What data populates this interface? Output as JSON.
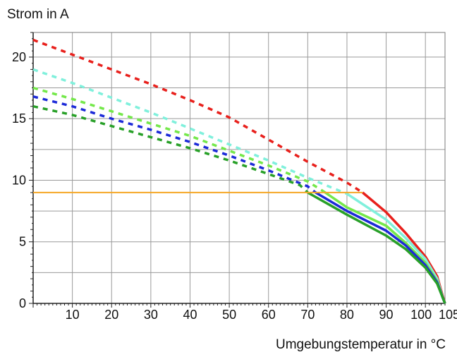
{
  "chart_data": {
    "type": "line",
    "title": "",
    "ylabel": "Strom in A",
    "xlabel": "Umgebungstemperatur in °C",
    "xlim": [
      0,
      105
    ],
    "ylim": [
      0,
      22
    ],
    "x_ticks": [
      10,
      20,
      30,
      40,
      50,
      60,
      70,
      80,
      90,
      100,
      105
    ],
    "y_ticks": [
      0,
      5,
      10,
      15,
      20
    ],
    "grid": true,
    "colors": {
      "red": "#e8201c",
      "cyan": "#80f0dc",
      "lightgreen": "#74e84a",
      "blue": "#1c2ad8",
      "green": "#28a028",
      "orange": "#f5a623"
    },
    "series": [
      {
        "color_key": "red",
        "dashed": [
          [
            0,
            21.4
          ],
          [
            10,
            20.2
          ],
          [
            20,
            19.0
          ],
          [
            30,
            17.8
          ],
          [
            40,
            16.5
          ],
          [
            50,
            15.1
          ],
          [
            60,
            13.3
          ],
          [
            70,
            11.5
          ],
          [
            80,
            9.8
          ],
          [
            84,
            9.0
          ]
        ],
        "solid": [
          [
            84,
            9.0
          ],
          [
            90,
            7.4
          ],
          [
            95,
            5.7
          ],
          [
            100,
            3.8
          ],
          [
            103,
            2.2
          ],
          [
            104.5,
            0.5
          ],
          [
            105,
            0
          ]
        ]
      },
      {
        "color_key": "cyan",
        "dashed": [
          [
            0,
            19.0
          ],
          [
            10,
            17.9
          ],
          [
            20,
            16.7
          ],
          [
            30,
            15.5
          ],
          [
            40,
            14.2
          ],
          [
            50,
            12.9
          ],
          [
            60,
            11.6
          ],
          [
            70,
            10.2
          ],
          [
            80,
            8.9
          ]
        ],
        "solid": [
          [
            80,
            8.9
          ],
          [
            90,
            6.8
          ],
          [
            95,
            5.3
          ],
          [
            100,
            3.6
          ],
          [
            103,
            2.0
          ],
          [
            104.5,
            0.4
          ],
          [
            105,
            0
          ]
        ]
      },
      {
        "color_key": "lightgreen",
        "dashed": [
          [
            0,
            17.5
          ],
          [
            10,
            16.6
          ],
          [
            20,
            15.6
          ],
          [
            30,
            14.6
          ],
          [
            40,
            13.6
          ],
          [
            50,
            12.4
          ],
          [
            60,
            11.2
          ],
          [
            70,
            9.9
          ],
          [
            74,
            9.1
          ]
        ],
        "solid": [
          [
            74,
            9.1
          ],
          [
            80,
            7.8
          ],
          [
            90,
            6.3
          ],
          [
            95,
            4.9
          ],
          [
            100,
            3.3
          ],
          [
            103,
            1.8
          ],
          [
            104.5,
            0.4
          ],
          [
            105,
            0
          ]
        ]
      },
      {
        "color_key": "blue",
        "dashed": [
          [
            0,
            16.8
          ],
          [
            10,
            16.0
          ],
          [
            20,
            15.0
          ],
          [
            30,
            14.1
          ],
          [
            40,
            13.1
          ],
          [
            50,
            12.0
          ],
          [
            60,
            10.8
          ],
          [
            70,
            9.5
          ],
          [
            72,
            9.0
          ]
        ],
        "solid": [
          [
            72,
            9.0
          ],
          [
            80,
            7.5
          ],
          [
            90,
            5.9
          ],
          [
            95,
            4.7
          ],
          [
            100,
            3.1
          ],
          [
            103,
            1.7
          ],
          [
            104.5,
            0.4
          ],
          [
            105,
            0
          ]
        ]
      },
      {
        "color_key": "green",
        "dashed": [
          [
            0,
            16.0
          ],
          [
            10,
            15.3
          ],
          [
            20,
            14.4
          ],
          [
            30,
            13.5
          ],
          [
            40,
            12.6
          ],
          [
            50,
            11.6
          ],
          [
            60,
            10.5
          ],
          [
            68,
            9.6
          ],
          [
            70,
            9.0
          ]
        ],
        "solid": [
          [
            70,
            9.0
          ],
          [
            80,
            7.2
          ],
          [
            90,
            5.5
          ],
          [
            95,
            4.4
          ],
          [
            100,
            2.9
          ],
          [
            103,
            1.6
          ],
          [
            104.5,
            0.4
          ],
          [
            105,
            0
          ]
        ]
      },
      {
        "color_key": "orange",
        "solid": [
          [
            0,
            9.0
          ],
          [
            84,
            9.0
          ]
        ]
      }
    ]
  }
}
